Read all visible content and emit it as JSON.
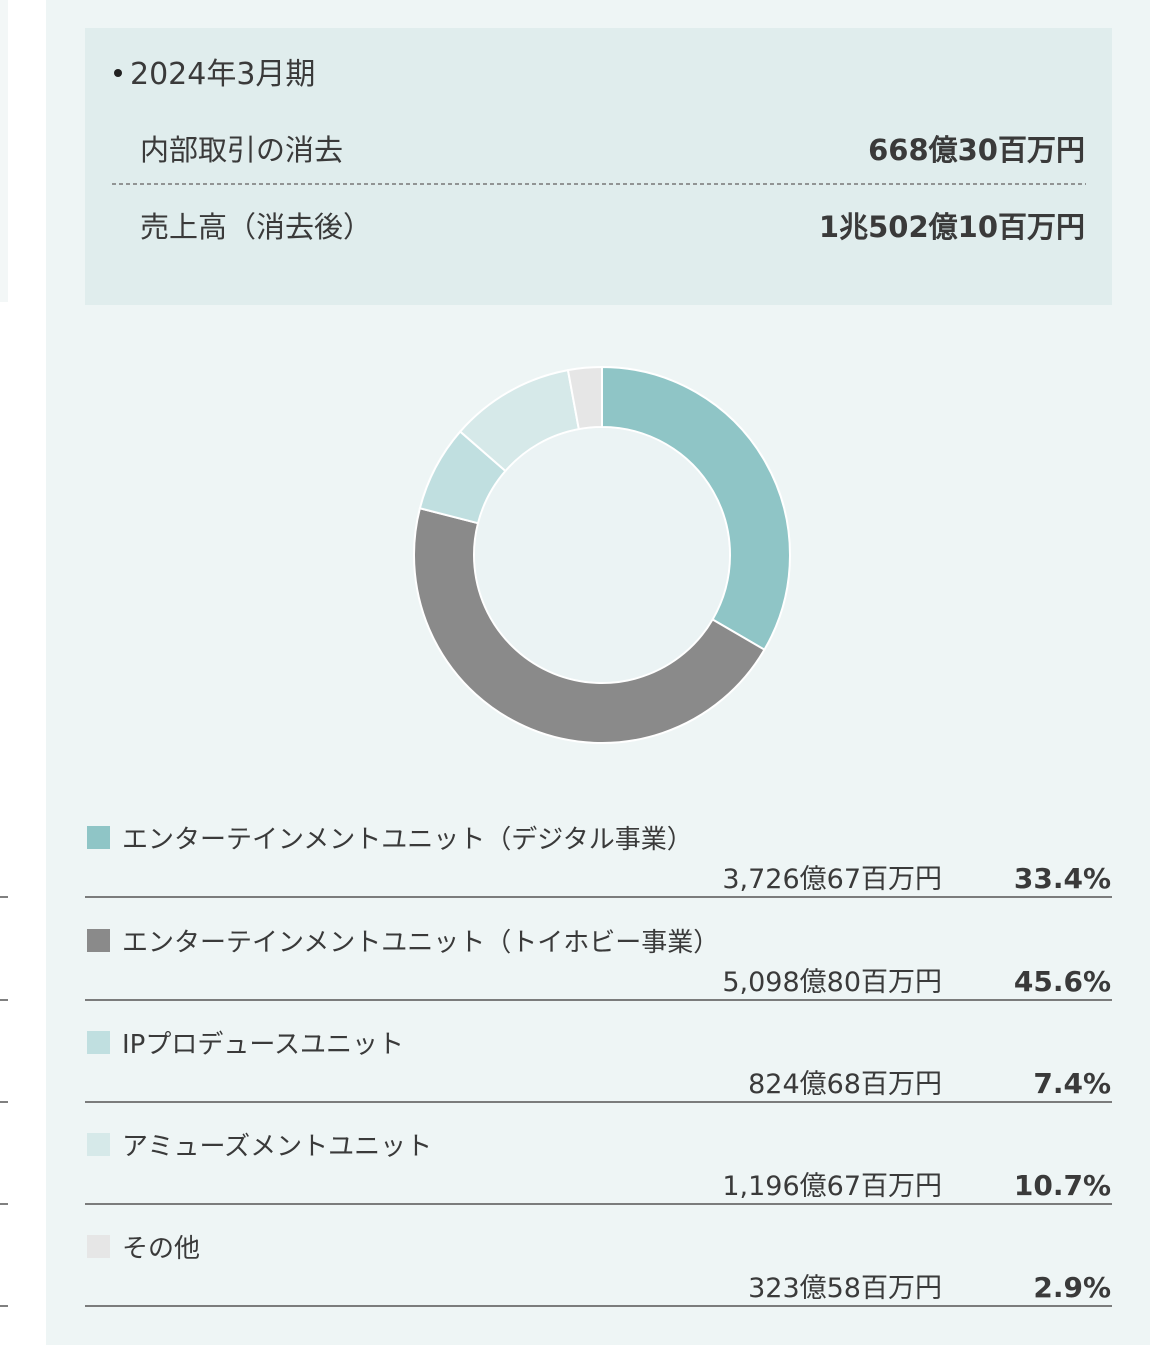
{
  "summary": {
    "title": "2024年3月期",
    "rows": [
      {
        "label": "内部取引の消去",
        "value": "668億30百万円"
      },
      {
        "label": "売上高（消去後）",
        "value": "1兆502億10百万円"
      }
    ]
  },
  "chart_data": {
    "type": "pie",
    "donut": true,
    "categories": [
      "エンターテインメントユニット（デジタル事業）",
      "エンターテインメントユニット（トイホビー事業）",
      "IPプロデュースユニット",
      "アミューズメントユニット",
      "その他"
    ],
    "amounts": [
      "3,726億67百万円",
      "5,098億80百万円",
      "824億68百万円",
      "1,196億67百万円",
      "323億58百万円"
    ],
    "values": [
      33.4,
      45.6,
      7.4,
      10.7,
      2.9
    ],
    "value_labels": [
      "33.4%",
      "45.6%",
      "7.4%",
      "10.7%",
      "2.9%"
    ],
    "colors": [
      "#8fc5c6",
      "#8a8a8a",
      "#c0dfe0",
      "#d6e9e9",
      "#e6e6e6"
    ]
  }
}
